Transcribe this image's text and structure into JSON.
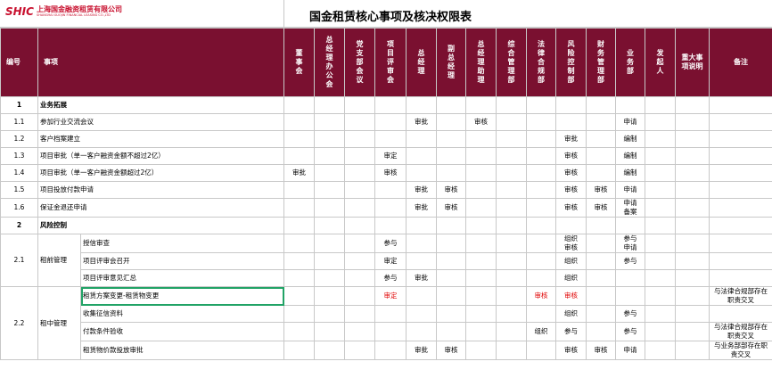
{
  "header": {
    "logo_mark": "SHIC",
    "logo_cn": "上海国金融资租赁有限公司",
    "logo_en": "SHANGHAI GUOJIN FINANCIAL LEASING CO.,LTD",
    "title": "国金租赁核心事项及核决权限表"
  },
  "table": {
    "columns": [
      "编号",
      "事项",
      "董事会",
      "总经理办公会",
      "党支部会议",
      "项目评审会",
      "总经理",
      "副总经理",
      "总经理助理",
      "综合管理部",
      "法律合规部",
      "风险控制部",
      "财务管理部",
      "业务部",
      "发起人",
      "重大事项说明",
      "备注"
    ],
    "highlight_color": "#e00000",
    "rows": [
      {
        "no": "1",
        "name": "业务拓展",
        "section": true
      },
      {
        "no": "1.1",
        "name": "参加行业交流会议",
        "cells": [
          null,
          null,
          null,
          null,
          "审批",
          null,
          "审核",
          null,
          null,
          null,
          null,
          "申请",
          null,
          null
        ]
      },
      {
        "no": "1.2",
        "name": "客户档案建立",
        "cells": [
          null,
          null,
          null,
          null,
          null,
          null,
          null,
          null,
          null,
          "审批",
          null,
          "编制",
          null,
          null
        ]
      },
      {
        "no": "1.3",
        "name": "项目审批（单一客户融资金额不超过2亿）",
        "cells": [
          null,
          null,
          null,
          "审定",
          null,
          null,
          null,
          null,
          null,
          "审核",
          null,
          "编制",
          null,
          null
        ]
      },
      {
        "no": "1.4",
        "name": "项目审批（单一客户融资金额超过2亿）",
        "cells": [
          "审批",
          null,
          null,
          "审核",
          null,
          null,
          null,
          null,
          null,
          "审核",
          null,
          "编制",
          null,
          null
        ]
      },
      {
        "no": "1.5",
        "name": "项目投放付款申请",
        "cells": [
          null,
          null,
          null,
          null,
          "审批",
          "审核",
          null,
          null,
          null,
          "审核",
          "审核",
          "申请",
          null,
          null
        ]
      },
      {
        "no": "1.6",
        "name": "保证金退还申请",
        "cells": [
          null,
          null,
          null,
          null,
          "审批",
          "审核",
          null,
          null,
          null,
          "审核",
          "审核",
          "申请\n备案",
          null,
          null
        ]
      },
      {
        "no": "2",
        "name": "风险控制",
        "section": true
      },
      {
        "no": "2.1",
        "name": "租前管理",
        "items": [
          {
            "name": "授信审查",
            "cells": [
              null,
              null,
              null,
              "参与",
              null,
              null,
              null,
              null,
              null,
              "组织\n审核",
              null,
              "参与\n申请",
              null,
              null
            ]
          },
          {
            "name": "项目评审会召开",
            "cells": [
              null,
              null,
              null,
              "审定",
              null,
              null,
              null,
              null,
              null,
              "组织",
              null,
              "参与",
              null,
              null
            ]
          },
          {
            "name": "项目评审意见汇总",
            "cells": [
              null,
              null,
              null,
              "参与",
              "审批",
              null,
              null,
              null,
              null,
              "组织",
              null,
              null,
              null,
              null
            ]
          }
        ]
      },
      {
        "no": "2.2",
        "name": "租中管理",
        "items": [
          {
            "name": "租赁方案变更-租赁物变更",
            "selected": true,
            "highlight": true,
            "cells": [
              null,
              null,
              null,
              "审定",
              null,
              null,
              null,
              null,
              "审核",
              "审核",
              null,
              null,
              null,
              null
            ],
            "note": "与法律合规部存在职责交叉"
          },
          {
            "name": "收集征信资料",
            "cells": [
              null,
              null,
              null,
              null,
              null,
              null,
              null,
              null,
              null,
              "组织",
              null,
              "参与",
              null,
              null
            ]
          },
          {
            "name": "付款条件验收",
            "cells": [
              null,
              null,
              null,
              null,
              null,
              null,
              null,
              null,
              "组织",
              "参与",
              null,
              "参与",
              null,
              null
            ],
            "note": "与法律合规部存在职责交叉"
          },
          {
            "name": "租赁物价款投放审批",
            "cells": [
              null,
              null,
              null,
              null,
              "审批",
              "审核",
              null,
              null,
              null,
              "审核",
              "审核",
              "申请",
              null,
              null
            ],
            "note": "与业务部部存在职责交叉"
          }
        ]
      }
    ]
  }
}
